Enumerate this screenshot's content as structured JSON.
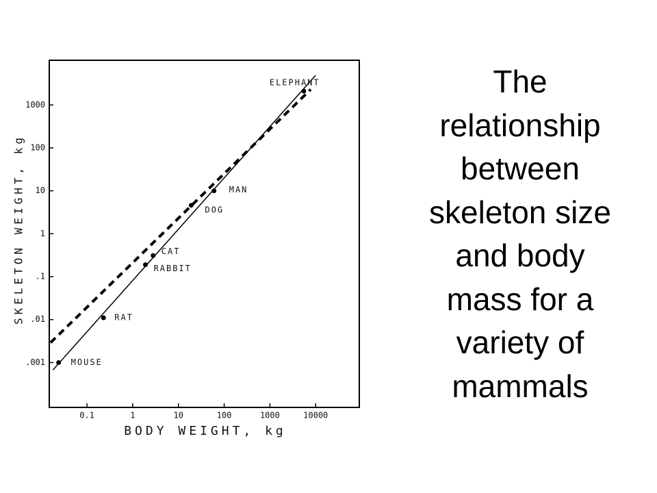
{
  "chart_data": {
    "type": "scatter",
    "title": [
      "The",
      "relationship",
      "between",
      "skeleton size",
      "and body",
      "mass for a",
      "variety of",
      "mammals"
    ],
    "x_label": "BODY WEIGHT, kg",
    "y_label": "SKELETON WEIGHT, kg",
    "xscale": "log",
    "yscale": "log",
    "xlim": [
      0.015,
      90000
    ],
    "ylim": [
      9e-05,
      11000
    ],
    "xticks": [
      0.1,
      1,
      10,
      100,
      1000,
      10000
    ],
    "yticks": [
      {
        "value": 0.001,
        "label": ".001"
      },
      {
        "value": 0.01,
        "label": ".01"
      },
      {
        "value": 0.1,
        "label": ".1"
      },
      1,
      10,
      100,
      1000
    ],
    "color": "#000000",
    "points": {
      "labels": [
        "MOUSE",
        "RAT",
        "RABBIT",
        "CAT",
        "DOG",
        "MAN",
        "ELEPHANT"
      ],
      "x": [
        0.024,
        0.23,
        1.9,
        2.8,
        19,
        60,
        5500
      ],
      "y": [
        0.001,
        0.011,
        0.19,
        0.31,
        4.6,
        10,
        2100
      ]
    },
    "fit_lines": [
      {
        "style": "solid",
        "x": [
          0.018,
          10000
        ],
        "y": [
          0.00067,
          4900
        ]
      },
      {
        "style": "dashed",
        "x": [
          0.016,
          7800
        ],
        "y": [
          0.0029,
          2300
        ]
      }
    ]
  }
}
